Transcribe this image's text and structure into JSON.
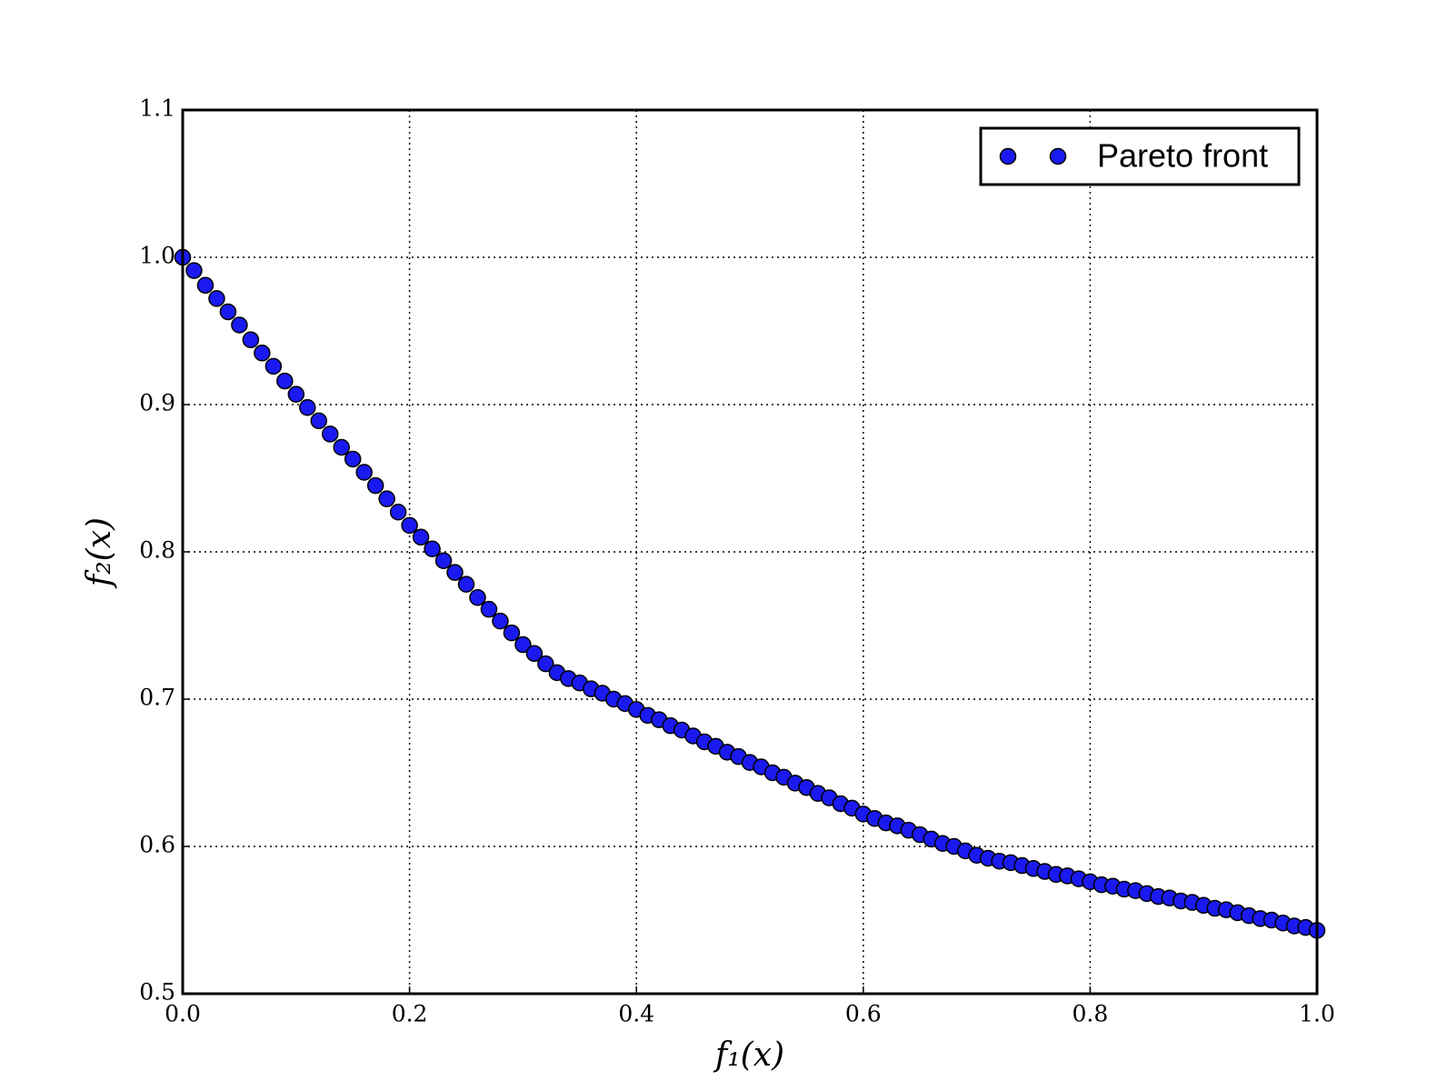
{
  "chart_data": {
    "type": "scatter",
    "xlabel": "f₁(x)",
    "ylabel": "f₂(x)",
    "series": [
      {
        "name": "Pareto front",
        "color": "#1a1af0",
        "x": [
          0,
          0.01,
          0.02,
          0.03,
          0.04,
          0.05,
          0.06,
          0.07,
          0.08,
          0.09,
          0.1,
          0.11,
          0.12,
          0.13,
          0.14,
          0.15,
          0.16,
          0.17,
          0.18,
          0.19,
          0.2,
          0.21,
          0.22,
          0.23,
          0.24,
          0.25,
          0.26,
          0.27,
          0.28,
          0.29,
          0.3,
          0.31,
          0.32,
          0.33,
          0.34,
          0.35,
          0.36,
          0.37,
          0.38,
          0.39,
          0.4,
          0.41,
          0.42,
          0.43,
          0.44,
          0.45,
          0.46,
          0.47,
          0.48,
          0.49,
          0.5,
          0.51,
          0.52,
          0.53,
          0.54,
          0.55,
          0.56,
          0.57,
          0.58,
          0.59,
          0.6,
          0.61,
          0.62,
          0.63,
          0.64,
          0.65,
          0.66,
          0.67,
          0.68,
          0.69,
          0.7,
          0.71,
          0.72,
          0.73,
          0.74,
          0.75,
          0.76,
          0.77,
          0.78,
          0.79,
          0.8,
          0.81,
          0.82,
          0.83,
          0.84,
          0.85,
          0.86,
          0.87,
          0.88,
          0.89,
          0.9,
          0.91,
          0.92,
          0.93,
          0.94,
          0.95,
          0.96,
          0.97,
          0.98,
          0.99,
          1.0
        ],
        "values": [
          1.0,
          0.991,
          0.981,
          0.972,
          0.963,
          0.954,
          0.944,
          0.935,
          0.926,
          0.916,
          0.907,
          0.898,
          0.889,
          0.88,
          0.871,
          0.863,
          0.854,
          0.845,
          0.836,
          0.827,
          0.818,
          0.81,
          0.802,
          0.794,
          0.786,
          0.778,
          0.769,
          0.761,
          0.753,
          0.745,
          0.737,
          0.731,
          0.724,
          0.718,
          0.714,
          0.711,
          0.707,
          0.704,
          0.7,
          0.697,
          0.693,
          0.689,
          0.686,
          0.682,
          0.679,
          0.675,
          0.671,
          0.668,
          0.664,
          0.661,
          0.657,
          0.654,
          0.65,
          0.647,
          0.643,
          0.64,
          0.636,
          0.633,
          0.629,
          0.626,
          0.622,
          0.619,
          0.616,
          0.614,
          0.611,
          0.608,
          0.605,
          0.602,
          0.6,
          0.597,
          0.594,
          0.592,
          0.59,
          0.589,
          0.587,
          0.585,
          0.583,
          0.581,
          0.58,
          0.578,
          0.576,
          0.574,
          0.573,
          0.571,
          0.57,
          0.568,
          0.566,
          0.565,
          0.563,
          0.562,
          0.56,
          0.558,
          0.557,
          0.555,
          0.553,
          0.551,
          0.55,
          0.548,
          0.546,
          0.545,
          0.543
        ]
      }
    ],
    "xlim": [
      0,
      1
    ],
    "ylim": [
      0.5,
      1.1
    ],
    "xticks": [
      {
        "value": 0,
        "label": "0.0"
      },
      0.2,
      0.4,
      0.6,
      0.8,
      {
        "value": 1,
        "label": "1.0"
      }
    ],
    "yticks": [
      0.5,
      0.6,
      0.7,
      0.8,
      0.9,
      {
        "value": 1,
        "label": "1.0"
      },
      1.1
    ],
    "grid": true,
    "legend": "upper right"
  }
}
